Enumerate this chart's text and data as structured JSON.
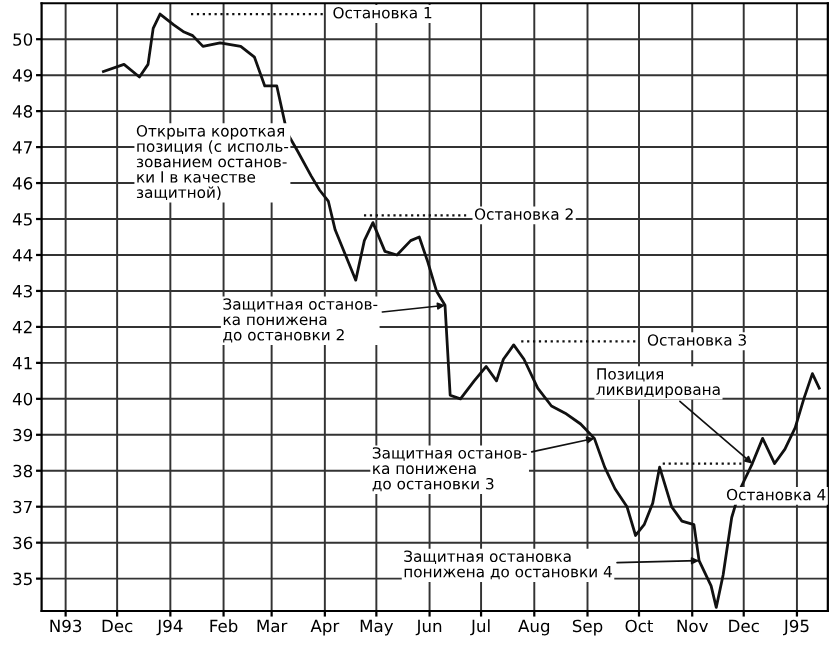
{
  "chart_data": {
    "type": "line",
    "marker": "none",
    "line_style": "solid",
    "grid": true,
    "x": [
      "1993-11-23",
      "1993-12-05",
      "1993-12-14",
      "1993-12-19",
      "1993-12-22",
      "1993-12-26",
      "1994-01-03",
      "1994-01-09",
      "1994-01-14",
      "1994-01-20",
      "1994-01-30",
      "1994-02-11",
      "1994-02-19",
      "1994-02-25",
      "1994-03-04",
      "1994-03-10",
      "1994-03-16",
      "1994-03-24",
      "1994-03-29",
      "1994-04-03",
      "1994-04-07",
      "1994-04-13",
      "1994-04-19",
      "1994-04-24",
      "1994-04-29",
      "1994-05-06",
      "1994-05-13",
      "1994-05-21",
      "1994-05-26",
      "1994-05-31",
      "1994-06-05",
      "1994-06-10",
      "1994-06-13",
      "1994-06-19",
      "1994-06-27",
      "1994-07-04",
      "1994-07-10",
      "1994-07-14",
      "1994-07-20",
      "1994-07-26",
      "1994-08-03",
      "1994-08-11",
      "1994-08-19",
      "1994-08-28",
      "1994-09-05",
      "1994-09-11",
      "1994-09-17",
      "1994-09-24",
      "1994-09-29",
      "1994-10-04",
      "1994-10-09",
      "1994-10-13",
      "1994-10-20",
      "1994-10-26",
      "1994-11-02",
      "1994-11-05",
      "1994-11-12",
      "1994-11-15",
      "1994-11-19",
      "1994-11-24",
      "1994-11-29",
      "1994-12-06",
      "1994-12-12",
      "1994-12-19",
      "1994-12-25",
      "1994-12-31",
      "1995-01-05",
      "1995-01-10",
      "1995-01-14"
    ],
    "values": [
      49.1,
      49.3,
      48.95,
      49.3,
      50.3,
      50.7,
      50.4,
      50.2,
      50.1,
      49.8,
      49.9,
      49.8,
      49.5,
      48.7,
      48.7,
      47.4,
      46.9,
      46.2,
      45.8,
      45.5,
      44.7,
      44.0,
      43.3,
      44.4,
      44.9,
      44.1,
      44.0,
      44.4,
      44.5,
      43.8,
      43.0,
      42.6,
      40.1,
      40.0,
      40.5,
      40.9,
      40.5,
      41.1,
      41.5,
      41.1,
      40.3,
      39.8,
      39.6,
      39.3,
      38.9,
      38.1,
      37.5,
      37.0,
      36.2,
      36.5,
      37.1,
      38.1,
      37.0,
      36.6,
      36.5,
      35.5,
      34.8,
      34.2,
      35.1,
      36.7,
      37.5,
      38.2,
      38.9,
      38.2,
      38.6,
      39.2,
      40.0,
      40.7,
      40.3
    ],
    "color": "#111111",
    "xlim": [
      "1993-10-18",
      "1995-01-19"
    ],
    "xticks": [
      {
        "value": "1993-11-01",
        "label": "N93"
      },
      {
        "value": "1993-12-01",
        "label": "Dec"
      },
      {
        "value": "1994-01-01",
        "label": "J94"
      },
      {
        "value": "1994-02-01",
        "label": "Feb"
      },
      {
        "value": "1994-03-01",
        "label": "Mar"
      },
      {
        "value": "1994-04-01",
        "label": "Apr"
      },
      {
        "value": "1994-05-01",
        "label": "May"
      },
      {
        "value": "1994-06-01",
        "label": "Jun"
      },
      {
        "value": "1994-07-01",
        "label": "Jul"
      },
      {
        "value": "1994-08-01",
        "label": "Aug"
      },
      {
        "value": "1994-09-01",
        "label": "Sep"
      },
      {
        "value": "1994-10-01",
        "label": "Oct"
      },
      {
        "value": "1994-11-01",
        "label": "Nov"
      },
      {
        "value": "1994-12-01",
        "label": "Dec"
      },
      {
        "value": "1995-01-01",
        "label": "J95"
      }
    ],
    "ylim": [
      34.1,
      51
    ],
    "yticks": [
      35,
      36,
      37,
      38,
      39,
      40,
      41,
      42,
      43,
      44,
      45,
      46,
      47,
      48,
      49,
      50
    ],
    "ref_lines": [
      {
        "axis": "y",
        "value": 50.7,
        "label": "Остановка 1",
        "line_style": "dotted"
      },
      {
        "axis": "y",
        "value": 45.1,
        "label": "Остановка 2",
        "line_style": "dotted"
      },
      {
        "axis": "y",
        "value": 41.6,
        "label": "Остановка 3",
        "line_style": "dotted"
      },
      {
        "axis": "y",
        "value": 38.2,
        "label": "Остановка 4",
        "line_style": "dotted"
      }
    ],
    "annotations": [
      {
        "text": "Открыта короткая\nпозиция (с исполь-\nзованием останов-\nки I в качестве\nзащитной)",
        "x": "1994-03-10",
        "y": 47.4
      },
      {
        "text": "Защитная останов-\nка понижена\nдо остановки 2",
        "x": "1994-06-10",
        "y": 42.6
      },
      {
        "text": "Позиция\nликвидирована",
        "x": "1994-12-06",
        "y": 38.2
      },
      {
        "text": "Защитная останов-\nка понижена\nдо остановки 3",
        "x": "1994-09-05",
        "y": 38.9
      },
      {
        "text": "Защитная остановка\nпонижена до остановки 4",
        "x": "1994-11-05",
        "y": 35.5
      }
    ]
  }
}
